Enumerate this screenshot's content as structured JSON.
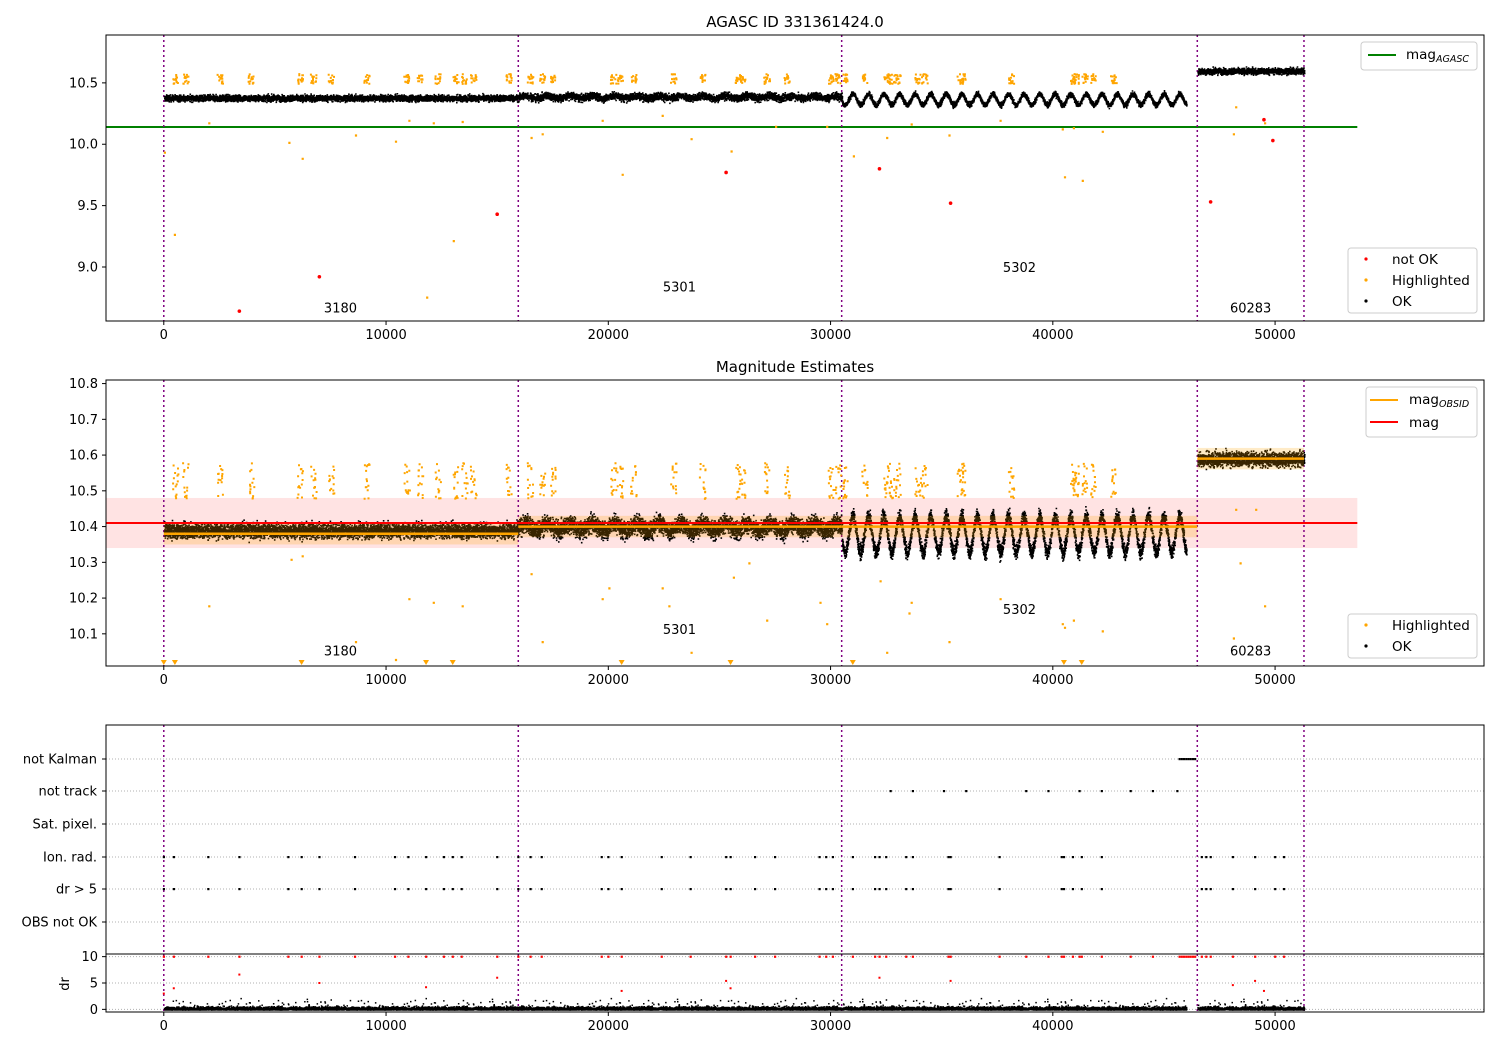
{
  "chart_data": [
    {
      "type": "scatter",
      "title": "AGASC ID 331361424.0",
      "xlim": [
        -2600,
        59400
      ],
      "ylim": [
        8.56,
        10.89
      ],
      "xticks": [
        0,
        10000,
        20000,
        30000,
        40000,
        50000
      ],
      "yticks": [
        9.0,
        9.5,
        10.0,
        10.5
      ],
      "ytick_labels": [
        "9.0",
        "9.5",
        "10.0",
        "10.5"
      ],
      "obsid_boundaries": [
        0,
        15950,
        30500,
        46500,
        51300
      ],
      "segment_labels": [
        {
          "text": "3180",
          "x": 7950,
          "y": 8.63
        },
        {
          "text": "5301",
          "x": 23200,
          "y": 8.8
        },
        {
          "text": "5302",
          "x": 38500,
          "y": 8.96
        },
        {
          "text": "60283",
          "x": 48900,
          "y": 8.63
        }
      ],
      "reference_lines": [
        {
          "name": "mag",
          "sub": "AGASC",
          "y": 10.14,
          "x_range": [
            -2600,
            53700
          ],
          "color": "#008000"
        }
      ],
      "segments": [
        {
          "start": 0,
          "end": 15950,
          "base": 10.38,
          "spread": 0.025,
          "osc_amp": 0.0,
          "osc_period": 1000
        },
        {
          "start": 15950,
          "end": 30500,
          "base": 10.39,
          "spread": 0.03,
          "osc_amp": 0.01,
          "osc_period": 1000
        },
        {
          "start": 30500,
          "end": 46000,
          "base": 10.37,
          "spread": 0.02,
          "osc_amp": 0.045,
          "osc_period": 700
        },
        {
          "start": 46500,
          "end": 51300,
          "base": 10.6,
          "spread": 0.025,
          "osc_amp": 0.0,
          "osc_period": 1000
        }
      ],
      "highlighted_cluster_y": [
        10.5,
        10.58
      ],
      "highlighted_points": [
        [
          0,
          9.94
        ],
        [
          450,
          9.27
        ],
        [
          2000,
          10.18
        ],
        [
          5600,
          10.02
        ],
        [
          6200,
          9.89
        ],
        [
          8600,
          10.08
        ],
        [
          10400,
          10.03
        ],
        [
          11000,
          10.2
        ],
        [
          11800,
          8.76
        ],
        [
          12100,
          10.18
        ],
        [
          13000,
          9.22
        ],
        [
          13400,
          10.19
        ],
        [
          16500,
          10.06
        ],
        [
          17000,
          10.09
        ],
        [
          19700,
          10.2
        ],
        [
          20600,
          9.76
        ],
        [
          22400,
          10.24
        ],
        [
          23700,
          10.05
        ],
        [
          25500,
          9.95
        ],
        [
          27500,
          10.15
        ],
        [
          29800,
          10.15
        ],
        [
          31000,
          9.91
        ],
        [
          32500,
          10.06
        ],
        [
          33600,
          10.17
        ],
        [
          35300,
          10.08
        ],
        [
          37600,
          10.2
        ],
        [
          40500,
          9.74
        ],
        [
          41300,
          9.71
        ],
        [
          40400,
          10.13
        ],
        [
          40900,
          10.14
        ],
        [
          42200,
          10.11
        ],
        [
          48100,
          10.09
        ],
        [
          48200,
          10.31
        ],
        [
          49500,
          10.18
        ]
      ],
      "not_ok_points": [
        [
          3400,
          8.64
        ],
        [
          7000,
          8.92
        ],
        [
          15000,
          9.43
        ],
        [
          25300,
          9.77
        ],
        [
          32200,
          9.8
        ],
        [
          35400,
          9.52
        ],
        [
          47100,
          9.53
        ],
        [
          49900,
          10.03
        ],
        [
          49500,
          10.2
        ]
      ],
      "legend_top": [
        {
          "name": "mag",
          "sub": "AGASC",
          "color": "#008000"
        }
      ],
      "legend_bottom": [
        {
          "name": "not OK",
          "color": "#ff0000"
        },
        {
          "name": "Highlighted",
          "color": "#ffa500"
        },
        {
          "name": "OK",
          "color": "#000000"
        }
      ]
    },
    {
      "type": "scatter",
      "title": "Magnitude Estimates",
      "xlim": [
        -2600,
        59400
      ],
      "ylim": [
        10.01,
        10.81
      ],
      "xticks": [
        0,
        10000,
        20000,
        30000,
        40000,
        50000
      ],
      "yticks": [
        10.1,
        10.2,
        10.3,
        10.4,
        10.5,
        10.6,
        10.7,
        10.8
      ],
      "ytick_labels": [
        "10.1",
        "10.2",
        "10.3",
        "10.4",
        "10.5",
        "10.6",
        "10.7",
        "10.8"
      ],
      "obsid_boundaries": [
        0,
        15950,
        30500,
        46500,
        51300
      ],
      "segment_labels": [
        {
          "text": "3180",
          "x": 7950,
          "y": 10.04
        },
        {
          "text": "5301",
          "x": 23200,
          "y": 10.1
        },
        {
          "text": "5302",
          "x": 38500,
          "y": 10.155
        },
        {
          "text": "60283",
          "x": 48900,
          "y": 10.04
        }
      ],
      "mag_band": {
        "y": 10.41,
        "low": 10.34,
        "high": 10.48,
        "x_range": [
          -2600,
          53700
        ]
      },
      "obsid_mag": [
        {
          "start": 0,
          "end": 15950,
          "y": 10.38
        },
        {
          "start": 15950,
          "end": 30500,
          "y": 10.4
        },
        {
          "start": 30500,
          "end": 46500,
          "y": 10.4
        },
        {
          "start": 46500,
          "end": 51300,
          "y": 10.59
        }
      ],
      "segments": [
        {
          "start": 0,
          "end": 15950,
          "base": 10.39,
          "spread": 0.02,
          "osc_amp": 0.0,
          "osc_period": 1000
        },
        {
          "start": 15950,
          "end": 30500,
          "base": 10.4,
          "spread": 0.025,
          "osc_amp": 0.01,
          "osc_period": 1000
        },
        {
          "start": 30500,
          "end": 46000,
          "base": 10.38,
          "spread": 0.02,
          "osc_amp": 0.05,
          "osc_period": 700
        },
        {
          "start": 46500,
          "end": 51300,
          "base": 10.59,
          "spread": 0.02,
          "osc_amp": 0.0,
          "osc_period": 1000
        }
      ],
      "highlighted_cluster_y": [
        10.48,
        10.58
      ],
      "highlighted_points": [
        [
          2000,
          10.18
        ],
        [
          5700,
          10.31
        ],
        [
          6200,
          10.32
        ],
        [
          8600,
          10.08
        ],
        [
          10400,
          10.03
        ],
        [
          11000,
          10.2
        ],
        [
          12100,
          10.19
        ],
        [
          13400,
          10.18
        ],
        [
          16500,
          10.27
        ],
        [
          17000,
          10.08
        ],
        [
          19700,
          10.2
        ],
        [
          20000,
          10.23
        ],
        [
          22400,
          10.23
        ],
        [
          22700,
          10.18
        ],
        [
          23700,
          10.05
        ],
        [
          25600,
          10.26
        ],
        [
          26300,
          10.3
        ],
        [
          27100,
          10.14
        ],
        [
          29500,
          10.19
        ],
        [
          29800,
          10.13
        ],
        [
          32200,
          10.25
        ],
        [
          32500,
          10.05
        ],
        [
          33500,
          10.16
        ],
        [
          33600,
          10.19
        ],
        [
          35300,
          10.08
        ],
        [
          37600,
          10.2
        ],
        [
          40400,
          10.13
        ],
        [
          40500,
          10.12
        ],
        [
          40900,
          10.14
        ],
        [
          42200,
          10.11
        ],
        [
          48100,
          10.09
        ],
        [
          48200,
          10.45
        ],
        [
          49100,
          10.45
        ],
        [
          49500,
          10.18
        ],
        [
          48400,
          10.3
        ]
      ],
      "low_markers_x": [
        0,
        500,
        6200,
        11800,
        13000,
        20600,
        25500,
        31000,
        40500,
        41300
      ],
      "legend_top": [
        {
          "name": "mag",
          "sub": "OBSID",
          "color": "#ffa500"
        },
        {
          "name": "mag",
          "sub": "",
          "color": "#ff0000"
        }
      ],
      "legend_bottom": [
        {
          "name": "Highlighted",
          "color": "#ffa500"
        },
        {
          "name": "OK",
          "color": "#000000"
        }
      ]
    },
    {
      "type": "scatter",
      "title": "",
      "xlim": [
        -2600,
        59400
      ],
      "xticks": [
        0,
        10000,
        20000,
        30000,
        40000,
        50000
      ],
      "obsid_boundaries": [
        0,
        15950,
        30500,
        46500,
        51300
      ],
      "flag_rows": [
        "not Kalman",
        "not track",
        "Sat. pixel.",
        "Ion. rad.",
        "dr > 5",
        "OBS not OK"
      ],
      "flag_points": {
        "not Kalman": [
          45700,
          45800,
          45900,
          46000,
          46100,
          46200,
          46300,
          46400
        ],
        "not track": [
          32700,
          33700,
          35100,
          36100,
          38800,
          39800,
          41200,
          42200,
          43500,
          44500,
          45600
        ],
        "Ion. rad.": [
          0,
          450,
          2000,
          3400,
          5600,
          6200,
          7000,
          8600,
          10400,
          11000,
          11800,
          12600,
          13000,
          13400,
          15000,
          15950,
          16500,
          17000,
          19700,
          20000,
          20600,
          22400,
          23700,
          25300,
          25500,
          26600,
          27500,
          29500,
          29800,
          30100,
          31000,
          32000,
          32200,
          32500,
          33400,
          33700,
          35300,
          35400,
          37600,
          40400,
          40500,
          40900,
          41300,
          42200,
          46700,
          46900,
          47100,
          48100,
          49100,
          50000,
          50400
        ],
        "dr > 5": [
          0,
          450,
          2000,
          3400,
          5600,
          6200,
          7000,
          8600,
          10400,
          11000,
          11800,
          12600,
          13000,
          13400,
          15000,
          15950,
          16500,
          17000,
          19700,
          20000,
          20600,
          22400,
          23700,
          25300,
          25500,
          26600,
          27500,
          29500,
          29800,
          30100,
          31000,
          32000,
          32200,
          32500,
          33400,
          33700,
          35300,
          35400,
          37600,
          40400,
          40500,
          40900,
          41300,
          42200,
          46700,
          46900,
          47100,
          48100,
          49100,
          50000,
          50400
        ]
      },
      "dr_subplot": {
        "ylabel": "dr",
        "ylim": [
          -0.5,
          10.5
        ],
        "yticks": [
          0,
          5,
          10
        ],
        "ytick_labels": [
          "0",
          "5",
          "10"
        ],
        "red_points_y10": [
          0,
          450,
          2000,
          3400,
          5600,
          6200,
          7000,
          8600,
          10400,
          11000,
          11800,
          12600,
          13000,
          13400,
          15000,
          15950,
          16500,
          17000,
          19700,
          20000,
          20600,
          22400,
          23700,
          25300,
          25500,
          26600,
          27500,
          29500,
          29800,
          30100,
          31000,
          32000,
          32200,
          32500,
          33400,
          33700,
          35300,
          35400,
          37600,
          38800,
          39800,
          40400,
          40500,
          40900,
          41200,
          41300,
          42200,
          43500,
          44500,
          45700,
          45800,
          45900,
          46000,
          46100,
          46200,
          46300,
          46400,
          46700,
          46900,
          47100,
          48100,
          49100,
          50000,
          50400
        ],
        "red_points_mid": [
          [
            0,
            3
          ],
          [
            450,
            4
          ],
          [
            3400,
            6.6
          ],
          [
            7000,
            5
          ],
          [
            11800,
            4.2
          ],
          [
            15000,
            6
          ],
          [
            20600,
            3.5
          ],
          [
            25300,
            5.4
          ],
          [
            25500,
            4
          ],
          [
            32200,
            6
          ],
          [
            35400,
            5.4
          ],
          [
            48100,
            4.6
          ],
          [
            49100,
            5.4
          ],
          [
            49500,
            3.5
          ]
        ]
      }
    }
  ]
}
